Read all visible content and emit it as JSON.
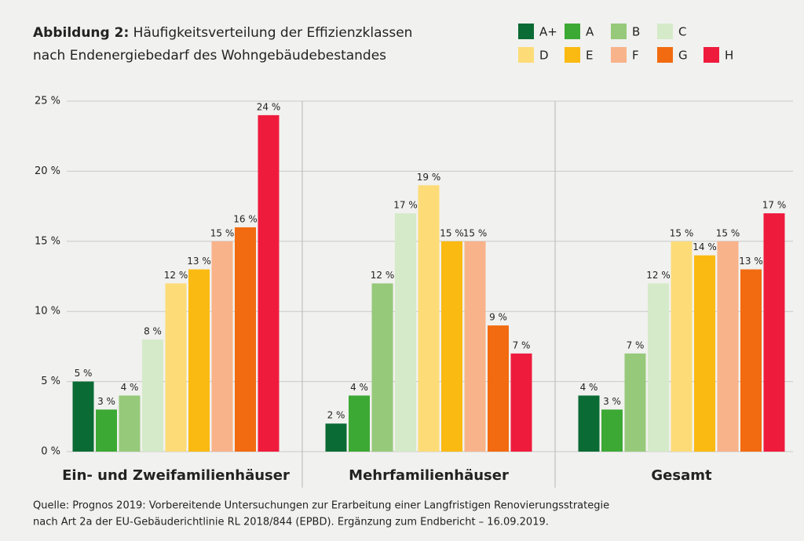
{
  "chart_data": {
    "type": "bar",
    "title_prefix": "Abbildung 2:",
    "title": [
      "Häufigkeitsverteilung der Effizienzklassen",
      "nach Endenergiebedarf des Wohngebäudebestandes"
    ],
    "source": [
      "Quelle: Prognos 2019: Vorbereitende Untersuchungen zur Erarbeitung einer Langfristigen Renovierungsstrategie",
      "nach Art 2a der EU-Gebäuderichtlinie RL 2018/844 (EPBD). Ergänzung zum Endbericht – 16.09.2019."
    ],
    "categories": [
      "Ein- und Zweifamilienhäuser",
      "Mehrfamilienhäuser",
      "Gesamt"
    ],
    "ylim": [
      0,
      25
    ],
    "yticks": [
      {
        "value": 0,
        "label": "0 %"
      },
      {
        "value": 5,
        "label": "5 %"
      },
      {
        "value": 10,
        "label": "10 %"
      },
      {
        "value": 15,
        "label": "15 %"
      },
      {
        "value": 20,
        "label": "20 %"
      },
      {
        "value": 25,
        "label": "25 %"
      }
    ],
    "grid": true,
    "legend": "top-right",
    "series": [
      {
        "name": "A+",
        "color": "#0b6b34",
        "values": [
          5,
          2,
          4
        ],
        "value_labels": [
          "5 %",
          "2 %",
          "4 %"
        ]
      },
      {
        "name": "A",
        "color": "#3da935",
        "values": [
          3,
          4,
          3
        ],
        "value_labels": [
          "3 %",
          "4 %",
          "3 %"
        ]
      },
      {
        "name": "B",
        "color": "#96c97a",
        "values": [
          4,
          12,
          7
        ],
        "value_labels": [
          "4 %",
          "12 %",
          "7 %"
        ]
      },
      {
        "name": "C",
        "color": "#d5eac8",
        "values": [
          8,
          17,
          12
        ],
        "value_labels": [
          "8 %",
          "17 %",
          "12 %"
        ]
      },
      {
        "name": "D",
        "color": "#fddc78",
        "values": [
          12,
          19,
          15
        ],
        "value_labels": [
          "12 %",
          "19 %",
          "15 %"
        ]
      },
      {
        "name": "E",
        "color": "#fbba12",
        "values": [
          13,
          15,
          14
        ],
        "value_labels": [
          "13 %",
          "15 %",
          "14 %"
        ]
      },
      {
        "name": "F",
        "color": "#f8b38a",
        "values": [
          15,
          15,
          15
        ],
        "value_labels": [
          "15 %",
          "15 %",
          "15 %"
        ]
      },
      {
        "name": "G",
        "color": "#f26b10",
        "values": [
          16,
          9,
          13
        ],
        "value_labels": [
          "16 %",
          "9 %",
          "13 %"
        ]
      },
      {
        "name": "H",
        "color": "#ef1b3d",
        "values": [
          24,
          7,
          17
        ],
        "value_labels": [
          "24 %",
          "7 %",
          "17 %"
        ]
      }
    ]
  }
}
